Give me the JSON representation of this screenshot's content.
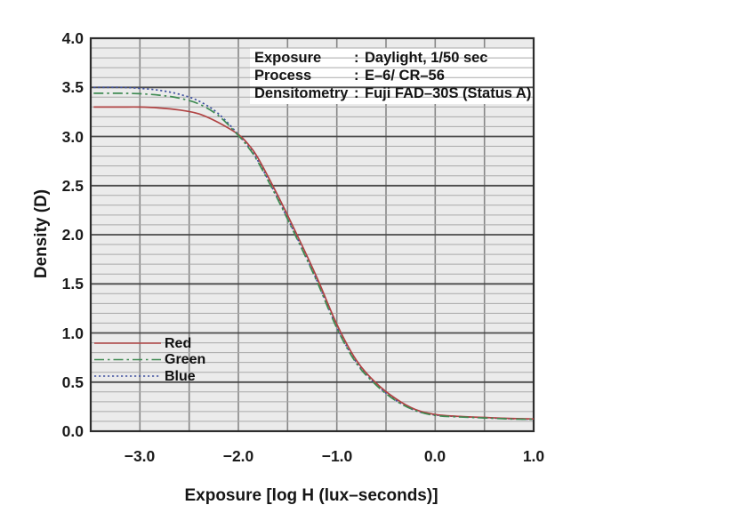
{
  "chart_data": {
    "type": "line",
    "title": "",
    "xlabel": "Exposure [log H (lux–seconds)]",
    "ylabel": "Density (D)",
    "xlim": [
      -3.5,
      1.0
    ],
    "ylim": [
      0.0,
      4.0
    ],
    "grid": {
      "on": true,
      "x_step": 0.5,
      "y_major_step": 0.5,
      "y_minor_step": 0.1
    },
    "plot_background": "#ebebeb",
    "grid_colors": {
      "minor_h": "#a9a9a9",
      "major_h": "#4b4b4b",
      "vertical": "#878787",
      "border": "#2d2d2d"
    },
    "x_ticks": [
      {
        "value": -3.0,
        "label": "−3.0"
      },
      {
        "value": -2.0,
        "label": "−2.0"
      },
      {
        "value": -1.0,
        "label": "−1.0"
      },
      {
        "value": 0.0,
        "label": "0.0"
      },
      {
        "value": 1.0,
        "label": "1.0"
      }
    ],
    "y_ticks": [
      {
        "value": 4.0,
        "label": "4.0"
      },
      {
        "value": 3.5,
        "label": "3.5"
      },
      {
        "value": 3.0,
        "label": "3.0"
      },
      {
        "value": 2.5,
        "label": "2.5"
      },
      {
        "value": 2.0,
        "label": "2.0"
      },
      {
        "value": 1.5,
        "label": "1.5"
      },
      {
        "value": 1.0,
        "label": "1.0"
      },
      {
        "value": 0.5,
        "label": "0.5"
      },
      {
        "value": 0.0,
        "label": "0.0"
      }
    ],
    "legend": {
      "position": "inside-lower-left",
      "entries": [
        "Red",
        "Green",
        "Blue"
      ]
    },
    "annotation": {
      "separator": ":",
      "rows": [
        {
          "label": "Exposure",
          "value": "Daylight, 1/50 sec"
        },
        {
          "label": "Process",
          "value": "E–6/ CR–56"
        },
        {
          "label": "Densitometry",
          "value": "Fuji FAD–30S (Status A)"
        }
      ]
    },
    "series": [
      {
        "name": "Red",
        "color": "#b04343",
        "style": "solid",
        "points": [
          [
            -3.47,
            3.3
          ],
          [
            -3.2,
            3.3
          ],
          [
            -3.0,
            3.3
          ],
          [
            -2.8,
            3.29
          ],
          [
            -2.6,
            3.27
          ],
          [
            -2.4,
            3.23
          ],
          [
            -2.2,
            3.14
          ],
          [
            -2.0,
            3.02
          ],
          [
            -1.9,
            2.92
          ],
          [
            -1.8,
            2.78
          ],
          [
            -1.6,
            2.4
          ],
          [
            -1.4,
            1.99
          ],
          [
            -1.2,
            1.56
          ],
          [
            -1.0,
            1.09
          ],
          [
            -0.8,
            0.72
          ],
          [
            -0.6,
            0.49
          ],
          [
            -0.4,
            0.33
          ],
          [
            -0.2,
            0.22
          ],
          [
            0.0,
            0.17
          ],
          [
            0.25,
            0.15
          ],
          [
            0.5,
            0.14
          ],
          [
            0.75,
            0.13
          ],
          [
            1.0,
            0.125
          ]
        ]
      },
      {
        "name": "Green",
        "color": "#3e8a52",
        "style": "dash-dot",
        "points": [
          [
            -3.47,
            3.44
          ],
          [
            -3.2,
            3.44
          ],
          [
            -3.0,
            3.435
          ],
          [
            -2.8,
            3.42
          ],
          [
            -2.6,
            3.39
          ],
          [
            -2.4,
            3.33
          ],
          [
            -2.2,
            3.21
          ],
          [
            -2.0,
            3.01
          ],
          [
            -1.9,
            2.89
          ],
          [
            -1.8,
            2.74
          ],
          [
            -1.6,
            2.36
          ],
          [
            -1.4,
            1.95
          ],
          [
            -1.2,
            1.52
          ],
          [
            -1.0,
            1.05
          ],
          [
            -0.8,
            0.69
          ],
          [
            -0.6,
            0.47
          ],
          [
            -0.4,
            0.31
          ],
          [
            -0.2,
            0.21
          ],
          [
            0.0,
            0.16
          ],
          [
            0.25,
            0.145
          ],
          [
            0.5,
            0.135
          ],
          [
            0.75,
            0.125
          ],
          [
            1.0,
            0.12
          ]
        ]
      },
      {
        "name": "Blue",
        "color": "#3f51a0",
        "style": "dotted",
        "points": [
          [
            -3.47,
            3.5
          ],
          [
            -3.2,
            3.5
          ],
          [
            -3.0,
            3.49
          ],
          [
            -2.8,
            3.47
          ],
          [
            -2.6,
            3.43
          ],
          [
            -2.4,
            3.36
          ],
          [
            -2.2,
            3.23
          ],
          [
            -2.0,
            3.02
          ],
          [
            -1.9,
            2.9
          ],
          [
            -1.8,
            2.75
          ],
          [
            -1.6,
            2.37
          ],
          [
            -1.4,
            1.96
          ],
          [
            -1.2,
            1.53
          ],
          [
            -1.0,
            1.06
          ],
          [
            -0.8,
            0.7
          ],
          [
            -0.6,
            0.475
          ],
          [
            -0.4,
            0.315
          ],
          [
            -0.2,
            0.21
          ],
          [
            0.0,
            0.165
          ],
          [
            0.25,
            0.148
          ],
          [
            0.5,
            0.138
          ],
          [
            0.75,
            0.128
          ],
          [
            1.0,
            0.122
          ]
        ]
      }
    ]
  }
}
